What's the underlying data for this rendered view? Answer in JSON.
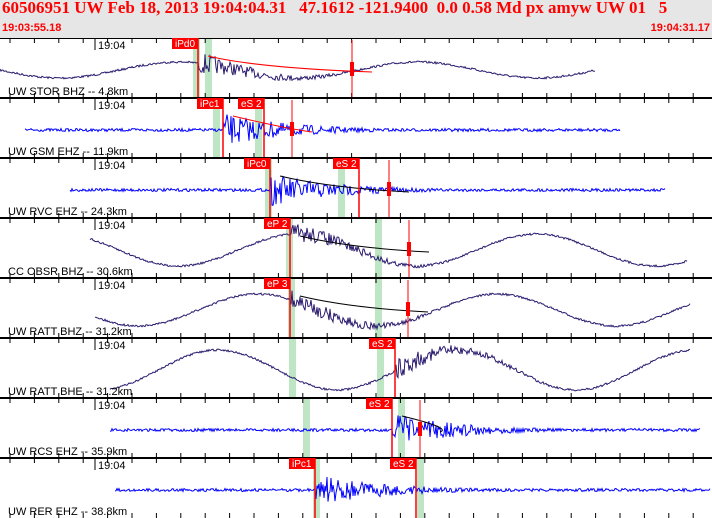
{
  "header": {
    "title": "60506951 UW Feb 18, 2013 19:04:04.31   47.1612 -121.9400  0.0 0.58 Md px amyw UW 01   5",
    "start_time": "19:03:55.18",
    "end_time": "19:04:31.17"
  },
  "colors": {
    "pick": "#ff0000",
    "window": "#bfe6c4",
    "trace_vertical_long": "#2a1a6e",
    "trace_short": "#0000ff",
    "background": "#e6e6e6"
  },
  "panels": [
    {
      "station": "UW STOR BHZ -- 4.8km",
      "time_label": "19:04",
      "trace_color": "#2a1a6e",
      "picks": [
        "iPd0"
      ]
    },
    {
      "station": "UW GSM EHZ -- 11.9km",
      "time_label": "19:04",
      "trace_color": "#0000ff",
      "picks": [
        "iPc1",
        "eS 2"
      ]
    },
    {
      "station": "UW RVC EHZ -- 24.3km",
      "time_label": "19:04",
      "trace_color": "#0000ff",
      "picks": [
        "iPc0",
        "eS 2"
      ]
    },
    {
      "station": "CC OBSR BHZ -- 30.6km",
      "time_label": "19:04",
      "trace_color": "#2a1a6e",
      "picks": [
        "eP 2"
      ]
    },
    {
      "station": "UW RATT BHZ -- 31.2km",
      "time_label": "19:04",
      "trace_color": "#2a1a6e",
      "picks": [
        "eP 3"
      ]
    },
    {
      "station": "UW RATT BHE -- 31.2km",
      "time_label": "19:04",
      "trace_color": "#2a1a6e",
      "picks": [
        "eS 2"
      ]
    },
    {
      "station": "UW RCS EHZ -- 35.9km",
      "time_label": "19:04",
      "trace_color": "#0000ff",
      "picks": [
        "eS 2"
      ]
    },
    {
      "station": "UW RER EHZ -- 38.8km",
      "time_label": "19:04",
      "trace_color": "#0000ff",
      "picks": [
        "iPc1",
        "eS 2"
      ]
    }
  ]
}
